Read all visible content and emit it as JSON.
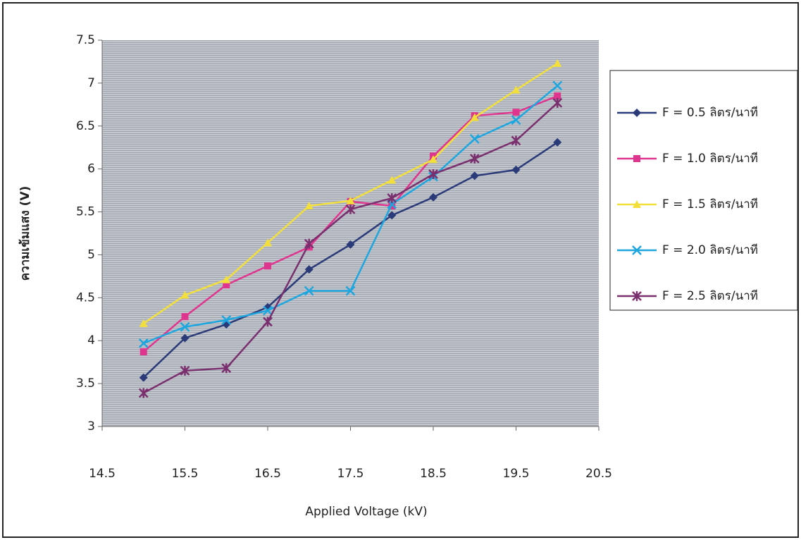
{
  "chart_data": {
    "type": "line",
    "x_label": "Applied Voltage (kV)",
    "y_label": "ความเข้มแสง (V)",
    "x": [
      15,
      15.5,
      16,
      16.5,
      17,
      17.5,
      18,
      18.5,
      19,
      19.5,
      20
    ],
    "series": [
      {
        "name": "F = 0.5 ลิตร/นาที",
        "color": "#2b3a78",
        "marker": "diamond",
        "values": [
          3.57,
          4.03,
          4.19,
          4.39,
          4.83,
          5.12,
          5.46,
          5.67,
          5.92,
          5.99,
          6.31
        ]
      },
      {
        "name": "F = 1.0 ลิตร/นาที",
        "color": "#e0358f",
        "marker": "square",
        "values": [
          3.87,
          4.28,
          4.65,
          4.87,
          5.09,
          5.62,
          5.57,
          6.15,
          6.62,
          6.66,
          6.85
        ]
      },
      {
        "name": "F = 1.5 ลิตร/นาที",
        "color": "#f2df3c",
        "marker": "triangle",
        "values": [
          4.2,
          4.53,
          4.71,
          5.14,
          5.57,
          5.63,
          5.87,
          6.11,
          6.6,
          6.92,
          7.23
        ]
      },
      {
        "name": "F = 2.0 ลิตร/นาที",
        "color": "#1ea6df",
        "marker": "x",
        "values": [
          3.97,
          4.16,
          4.24,
          4.35,
          4.58,
          4.58,
          5.59,
          5.91,
          6.35,
          6.57,
          6.97
        ]
      },
      {
        "name": "F = 2.5 ลิตร/นาที",
        "color": "#7a2f6e",
        "marker": "star",
        "values": [
          3.39,
          3.65,
          3.68,
          4.22,
          5.13,
          5.53,
          5.66,
          5.94,
          6.12,
          6.33,
          6.77
        ]
      }
    ],
    "xlim": [
      14.5,
      20.5
    ],
    "xticks": [
      14.5,
      15.5,
      16.5,
      17.5,
      18.5,
      19.5,
      20.5
    ],
    "ylim": [
      3,
      7.5
    ],
    "yticks": [
      3,
      3.5,
      4,
      4.5,
      5,
      5.5,
      6,
      6.5,
      7,
      7.5
    ],
    "legend": "right"
  }
}
